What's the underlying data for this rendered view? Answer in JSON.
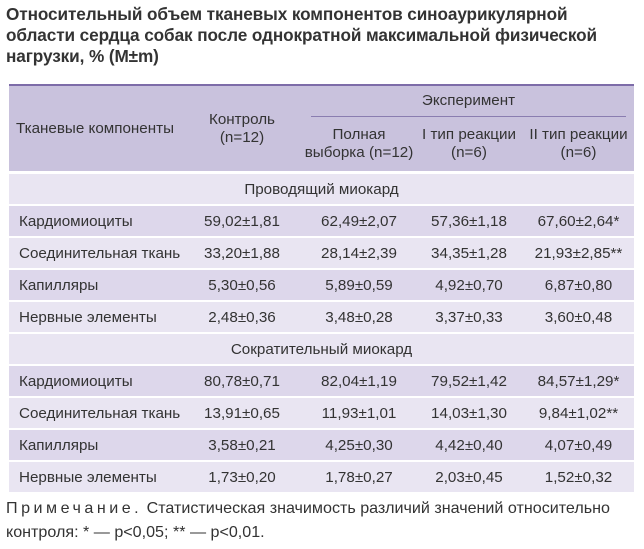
{
  "title": "Относительный объем тканевых компонентов синоаурикулярной области сердца собак после однократной максимальной физической нагрузки, % (M±m)",
  "header": {
    "col_components": "Тканевые компоненты",
    "col_control_line1": "Контроль",
    "col_control_line2": "(n=12)",
    "experiment": "Эксперимент",
    "col_full_line1": "Полная",
    "col_full_line2": "выборка (n=12)",
    "col_type1_line1": "I тип реакции",
    "col_type1_line2": "(n=6)",
    "col_type2_line1": "II тип реакции",
    "col_type2_line2": "(n=6)"
  },
  "sections": [
    {
      "name": "Проводящий миокард",
      "rows": [
        [
          "Кардиомиоциты",
          "59,02±1,81",
          "62,49±2,07",
          "57,36±1,18",
          "67,60±2,64*"
        ],
        [
          "Соединительная ткань",
          "33,20±1,88",
          "28,14±2,39",
          "34,35±1,28",
          "21,93±2,85**"
        ],
        [
          "Капилляры",
          "5,30±0,56",
          "5,89±0,59",
          "4,92±0,70",
          "6,87±0,80"
        ],
        [
          "Нервные элементы",
          "2,48±0,36",
          "3,48±0,28",
          "3,37±0,33",
          "3,60±0,48"
        ]
      ]
    },
    {
      "name": "Сократительный миокард",
      "rows": [
        [
          "Кардиомиоциты",
          "80,78±0,71",
          "82,04±1,19",
          "79,52±1,42",
          "84,57±1,29*"
        ],
        [
          "Соединительная ткань",
          "13,91±0,65",
          "11,93±1,01",
          "14,03±1,30",
          "9,84±1,02**"
        ],
        [
          "Капилляры",
          "3,58±0,21",
          "4,25±0,30",
          "4,42±0,40",
          "4,07±0,49"
        ],
        [
          "Нервные элементы",
          "1,73±0,20",
          "1,78±0,27",
          "2,03±0,45",
          "1,52±0,32"
        ]
      ]
    }
  ],
  "note": {
    "label": "Примечание.",
    "text": " Статистическая значимость различий значений относительно контроля: * — p<0,05; ** — p<0,01."
  },
  "colors": {
    "header_bg": "#c9c2dd",
    "row_dark": "#ddd7eb",
    "row_light": "#e9e5f2",
    "rule": "#7d6ca8"
  }
}
